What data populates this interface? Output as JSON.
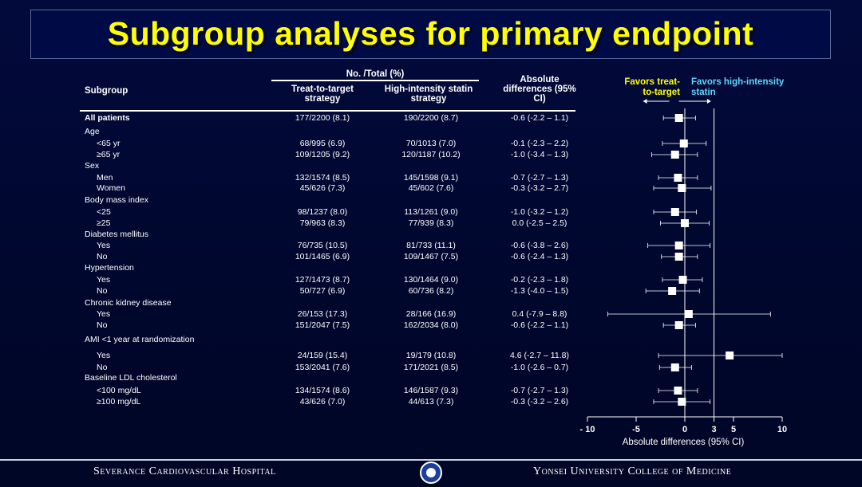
{
  "title": "Subgroup analyses for primary endpoint",
  "headers": {
    "subgroup": "Subgroup",
    "no_total": "No. /Total (%)",
    "treat_to_target": "Treat-to-target strategy",
    "high_intensity": "High-intensity statin strategy",
    "abs_diff": "Absolute differences (95% CI)",
    "favors_left": "Favors treat-to-target",
    "favors_right": "Favors high-intensity statin"
  },
  "rows": [
    {
      "label": "All patients",
      "bold": true,
      "indent": false,
      "tt": "177/2200 (8.1)",
      "hi": "190/2200 (8.7)",
      "diff": "-0.6 (-2.2 – 1.1)"
    },
    {
      "label": "Age",
      "bold": false,
      "indent": false,
      "tt": "",
      "hi": "",
      "diff": ""
    },
    {
      "label": "<65 yr",
      "bold": false,
      "indent": true,
      "tt": "68/995 (6.9)",
      "hi": "70/1013 (7.0)",
      "diff": "-0.1 (-2.3 – 2.2)"
    },
    {
      "label": "≥65 yr",
      "bold": false,
      "indent": true,
      "tt": "109/1205 (9.2)",
      "hi": "120/1187 (10.2)",
      "diff": "-1.0 (-3.4 – 1.3)"
    },
    {
      "label": "Sex",
      "bold": false,
      "indent": false,
      "tt": "",
      "hi": "",
      "diff": ""
    },
    {
      "label": "Men",
      "bold": false,
      "indent": true,
      "tt": "132/1574 (8.5)",
      "hi": "145/1598 (9.1)",
      "diff": "-0.7 (-2.7 – 1.3)"
    },
    {
      "label": "Women",
      "bold": false,
      "indent": true,
      "tt": "45/626 (7.3)",
      "hi": "45/602 (7.6)",
      "diff": "-0.3 (-3.2 – 2.7)"
    },
    {
      "label": "Body mass index",
      "bold": false,
      "indent": false,
      "tt": "",
      "hi": "",
      "diff": ""
    },
    {
      "label": "<25",
      "bold": false,
      "indent": true,
      "tt": "98/1237 (8.0)",
      "hi": "113/1261 (9.0)",
      "diff": "-1.0 (-3.2 – 1.2)"
    },
    {
      "label": "≥25",
      "bold": false,
      "indent": true,
      "tt": "79/963 (8.3)",
      "hi": "77/939 (8.3)",
      "diff": "0.0 (-2.5 – 2.5)"
    },
    {
      "label": "Diabetes mellitus",
      "bold": false,
      "indent": false,
      "tt": "",
      "hi": "",
      "diff": ""
    },
    {
      "label": "Yes",
      "bold": false,
      "indent": true,
      "tt": "76/735 (10.5)",
      "hi": "81/733 (11.1)",
      "diff": "-0.6 (-3.8 – 2.6)"
    },
    {
      "label": "No",
      "bold": false,
      "indent": true,
      "tt": "101/1465 (6.9)",
      "hi": "109/1467 (7.5)",
      "diff": "-0.6 (-2.4 – 1.3)"
    },
    {
      "label": "Hypertension",
      "bold": false,
      "indent": false,
      "tt": "",
      "hi": "",
      "diff": ""
    },
    {
      "label": "Yes",
      "bold": false,
      "indent": true,
      "tt": "127/1473 (8.7)",
      "hi": "130/1464 (9.0)",
      "diff": "-0.2 (-2.3 – 1.8)"
    },
    {
      "label": "No",
      "bold": false,
      "indent": true,
      "tt": "50/727 (6.9)",
      "hi": "60/736 (8.2)",
      "diff": "-1.3 (-4.0 – 1.5)"
    },
    {
      "label": "Chronic kidney disease",
      "bold": false,
      "indent": false,
      "tt": "",
      "hi": "",
      "diff": ""
    },
    {
      "label": "Yes",
      "bold": false,
      "indent": true,
      "tt": "26/153 (17.3)",
      "hi": "28/166 (16.9)",
      "diff": "0.4 (-7.9 – 8.8)"
    },
    {
      "label": "No",
      "bold": false,
      "indent": true,
      "tt": "151/2047 (7.5)",
      "hi": "162/2034 (8.0)",
      "diff": "-0.6 (-2.2 – 1.1)"
    },
    {
      "label": "AMI <1 year at randomization",
      "bold": false,
      "indent": false,
      "tt": "",
      "hi": "",
      "diff": ""
    },
    {
      "label": "Yes",
      "bold": false,
      "indent": true,
      "tt": "24/159 (15.4)",
      "hi": "19/179 (10.8)",
      "diff": "4.6 (-2.7 – 11.8)"
    },
    {
      "label": "No",
      "bold": false,
      "indent": true,
      "tt": "153/2041 (7.6)",
      "hi": "171/2021 (8.5)",
      "diff": "-1.0 (-2.6 – 0.7)"
    },
    {
      "label": "Baseline LDL cholesterol",
      "bold": false,
      "indent": false,
      "tt": "",
      "hi": "",
      "diff": ""
    },
    {
      "label": "<100 mg/dL",
      "bold": false,
      "indent": true,
      "tt": "134/1574 (8.6)",
      "hi": "146/1587 (9.3)",
      "diff": "-0.7 (-2.7 – 1.3)"
    },
    {
      "label": "≥100 mg/dL",
      "bold": false,
      "indent": true,
      "tt": "43/626 (7.0)",
      "hi": "44/613 (7.3)",
      "diff": "-0.3 (-3.2 – 2.6)"
    }
  ],
  "chart_data": {
    "type": "forest",
    "xlabel": "Absolute differences (95% CI)",
    "xlim": [
      -10,
      10
    ],
    "xticks": [
      -10,
      -5,
      0,
      3,
      5,
      10
    ],
    "xtick_labels": [
      "- 10",
      "-5",
      "0",
      "3",
      "5",
      "10"
    ],
    "reference_lines": [
      0,
      3
    ],
    "points": [
      {
        "label": "All patients",
        "est": -0.6,
        "lo": -2.2,
        "hi": 1.1
      },
      {
        "label": "<65 yr",
        "est": -0.1,
        "lo": -2.3,
        "hi": 2.2
      },
      {
        "label": "≥65 yr",
        "est": -1.0,
        "lo": -3.4,
        "hi": 1.3
      },
      {
        "label": "Men",
        "est": -0.7,
        "lo": -2.7,
        "hi": 1.3
      },
      {
        "label": "Women",
        "est": -0.3,
        "lo": -3.2,
        "hi": 2.7
      },
      {
        "label": "<25",
        "est": -1.0,
        "lo": -3.2,
        "hi": 1.2
      },
      {
        "label": "≥25",
        "est": 0.0,
        "lo": -2.5,
        "hi": 2.5
      },
      {
        "label": "Diabetes Yes",
        "est": -0.6,
        "lo": -3.8,
        "hi": 2.6
      },
      {
        "label": "Diabetes No",
        "est": -0.6,
        "lo": -2.4,
        "hi": 1.3
      },
      {
        "label": "Hypertension Yes",
        "est": -0.2,
        "lo": -2.3,
        "hi": 1.8
      },
      {
        "label": "Hypertension No",
        "est": -1.3,
        "lo": -4.0,
        "hi": 1.5
      },
      {
        "label": "CKD Yes",
        "est": 0.4,
        "lo": -7.9,
        "hi": 8.8
      },
      {
        "label": "CKD No",
        "est": -0.6,
        "lo": -2.2,
        "hi": 1.1
      },
      {
        "label": "AMI Yes",
        "est": 4.6,
        "lo": -2.7,
        "hi": 11.8
      },
      {
        "label": "AMI No",
        "est": -1.0,
        "lo": -2.6,
        "hi": 0.7
      },
      {
        "label": "<100 mg/dL",
        "est": -0.7,
        "lo": -2.7,
        "hi": 1.3
      },
      {
        "label": "≥100 mg/dL",
        "est": -0.3,
        "lo": -3.2,
        "hi": 2.6
      }
    ],
    "colors": {
      "favors_left": "#ffff00",
      "favors_right": "#5fd7ff",
      "marker": "#ffffff"
    }
  },
  "footer": {
    "left": "Severance Cardiovascular Hospital",
    "right": "Yonsei University College of Medicine"
  }
}
